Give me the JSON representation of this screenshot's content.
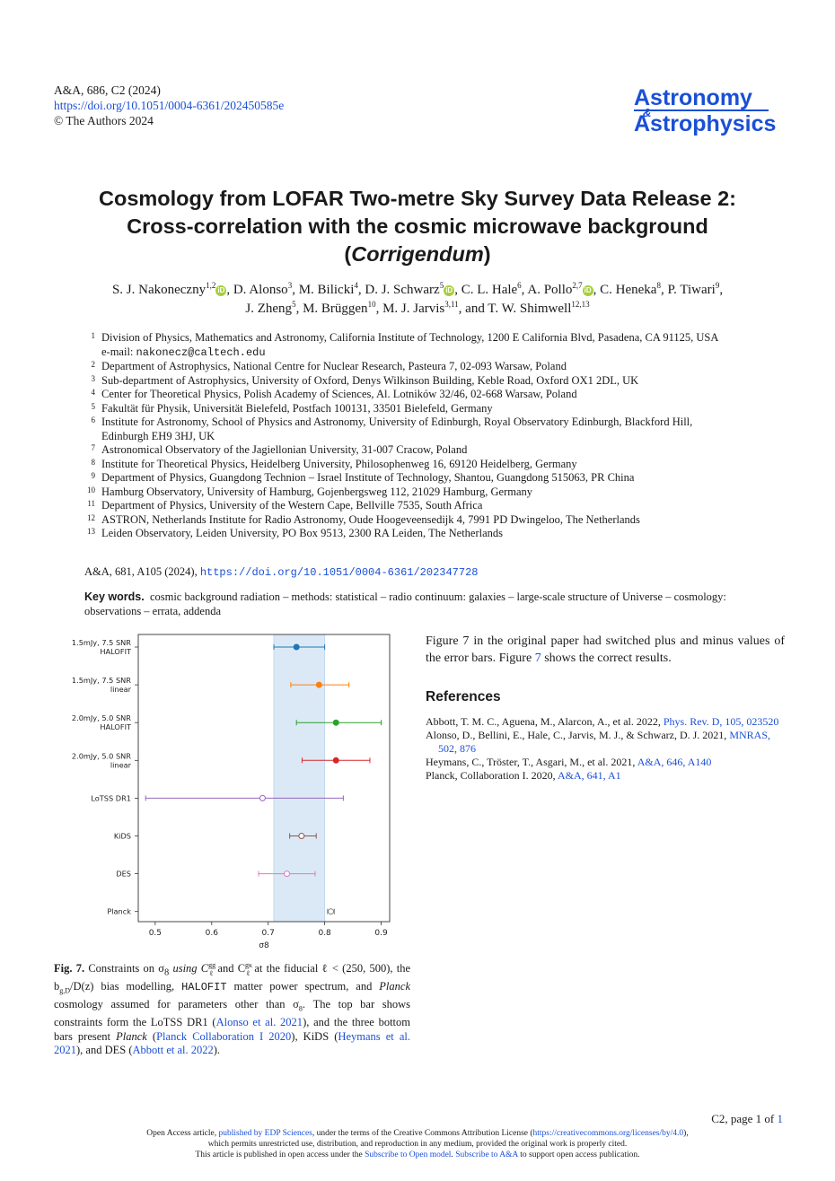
{
  "header": {
    "citation": "A&A, 686, C2 (2024)",
    "doi_link": "https://doi.org/10.1051/0004-6361/202450585e",
    "copyright": "© The Authors 2024",
    "journal_line1": "Astronomy",
    "journal_amp": "&",
    "journal_line2": "Astrophysics"
  },
  "title": {
    "line1": "Cosmology from LOFAR Two-metre Sky Survey Data Release 2:",
    "line2": "Cross-correlation with the cosmic microwave background",
    "line3_open": "(",
    "line3_italic": "Corrigendum",
    "line3_close": ")"
  },
  "authors": [
    {
      "name": "S. J. Nakoneczny",
      "aff": "1,2",
      "orcid": true
    },
    {
      "name": "D. Alonso",
      "aff": "3",
      "orcid": false
    },
    {
      "name": "M. Bilicki",
      "aff": "4",
      "orcid": false
    },
    {
      "name": "D. J. Schwarz",
      "aff": "5",
      "orcid": true
    },
    {
      "name": "C. L. Hale",
      "aff": "6",
      "orcid": false
    },
    {
      "name": "A. Pollo",
      "aff": "2,7",
      "orcid": true
    },
    {
      "name": "C. Heneka",
      "aff": "8",
      "orcid": false
    },
    {
      "name": "P. Tiwari",
      "aff": "9",
      "orcid": false
    },
    {
      "name": "J. Zheng",
      "aff": "5",
      "orcid": false
    },
    {
      "name": "M. Brüggen",
      "aff": "10",
      "orcid": false
    },
    {
      "name": "M. J. Jarvis",
      "aff": "3,11",
      "orcid": false
    },
    {
      "name": "T. W. Shimwell",
      "aff": "12,13",
      "orcid": false
    }
  ],
  "author_connector": "and",
  "orcid_glyph": "iD",
  "affiliations": [
    {
      "num": "1",
      "text": "Division of Physics, Mathematics and Astronomy, California Institute of Technology, 1200 E California Blvd, Pasadena, CA 91125, USA",
      "email_label": "e-mail: ",
      "email": "nakonecz@caltech.edu"
    },
    {
      "num": "2",
      "text": "Department of Astrophysics, National Centre for Nuclear Research, Pasteura 7, 02-093 Warsaw, Poland"
    },
    {
      "num": "3",
      "text": "Sub-department of Astrophysics, University of Oxford, Denys Wilkinson Building, Keble Road, Oxford OX1 2DL, UK"
    },
    {
      "num": "4",
      "text": "Center for Theoretical Physics, Polish Academy of Sciences, Al. Lotników 32/46, 02-668 Warsaw, Poland"
    },
    {
      "num": "5",
      "text": "Fakultät für Physik, Universität Bielefeld, Postfach 100131, 33501 Bielefeld, Germany"
    },
    {
      "num": "6",
      "text": "Institute for Astronomy, School of Physics and Astronomy, University of Edinburgh, Royal Observatory Edinburgh, Blackford Hill, Edinburgh EH9 3HJ, UK"
    },
    {
      "num": "7",
      "text": "Astronomical Observatory of the Jagiellonian University, 31-007 Cracow, Poland"
    },
    {
      "num": "8",
      "text": "Institute for Theoretical Physics, Heidelberg University, Philosophenweg 16, 69120 Heidelberg, Germany"
    },
    {
      "num": "9",
      "text": "Department of Physics, Guangdong Technion – Israel Institute of Technology, Shantou, Guangdong 515063, PR China"
    },
    {
      "num": "10",
      "text": "Hamburg Observatory, University of Hamburg, Gojenbergsweg 112, 21029 Hamburg, Germany"
    },
    {
      "num": "11",
      "text": "Department of Physics, University of the Western Cape, Bellville 7535, South Africa"
    },
    {
      "num": "12",
      "text": "ASTRON, Netherlands Institute for Radio Astronomy, Oude Hoogeveensedijk 4, 7991 PD Dwingeloo, The Netherlands"
    },
    {
      "num": "13",
      "text": "Leiden Observatory, Leiden University, PO Box 9513, 2300 RA Leiden, The Netherlands"
    }
  ],
  "original_ref": {
    "text": "A&A, 681, A105 (2024), ",
    "link": "https://doi.org/10.1051/0004-6361/202347728"
  },
  "keywords": {
    "label": "Key words.",
    "text": "cosmic background radiation – methods: statistical – radio continuum: galaxies – large-scale structure of Universe – cosmology: observations – errata, addenda"
  },
  "body_text": {
    "part1": "Figure 7 in the original paper had switched plus and minus values of the error bars. Figure ",
    "fig_link": "7",
    "part2": " shows the correct results."
  },
  "references": {
    "heading": "References",
    "items": [
      {
        "text": "Abbott, T. M. C., Aguena, M., Alarcon, A., et al. 2022, ",
        "link": "Phys. Rev. D, 105, 023520"
      },
      {
        "text": "Alonso, D., Bellini, E., Hale, C., Jarvis, M. J., & Schwarz, D. J. 2021, ",
        "link": "MNRAS, 502, 876"
      },
      {
        "text": "Heymans, C., Tröster, T., Asgari, M., et al. 2021, ",
        "link": "A&A, 646, A140"
      },
      {
        "text": "Planck, Collaboration I. 2020, ",
        "link": "A&A, 641, A1"
      }
    ]
  },
  "caption": {
    "label": "Fig. 7.",
    "html_parts": {
      "p1": " Constraints on σ",
      "p1_sub": "8",
      "p2": " using C",
      "p2_sup": "gg",
      "p2_sub": "ℓ",
      "p3": " and C",
      "p3_sup": "gκ",
      "p3_sub": "ℓ",
      "p4": " at the fiducial ℓ < (250, 500), the b",
      "p4_sub": "g,D",
      "p5": "/D(z) bias modelling, ",
      "p5_mono": "HALOFIT",
      "p6": " matter power spectrum, and ",
      "p6_it": "Planck",
      "p7": " cosmology assumed for parameters other than σ",
      "p7_sub": "8",
      "p8": ". The top bar shows constraints form the LoTSS DR1 (",
      "link1": "Alonso et al. 2021",
      "p9": "), and the three bottom bars present ",
      "p9_it": "Planck",
      "p10": " (",
      "link2": "Planck Collaboration I 2020",
      "p11": "), KiDS (",
      "link3": "Heymans et al. 2021",
      "p12": "), and DES (",
      "link4": "Abbott et al. 2022",
      "p13": ")."
    }
  },
  "footer": {
    "page": "C2, page 1 of ",
    "page_link": "1",
    "line1_a": "Open Access article, ",
    "line1_link1": "published by EDP Sciences",
    "line1_b": ", under the terms of the Creative Commons Attribution License (",
    "line1_link2": "https://creativecommons.org/licenses/by/4.0",
    "line1_c": "),",
    "line2": "which permits unrestricted use, distribution, and reproduction in any medium, provided the original work is properly cited.",
    "line3_a": "This article is published in open access under the ",
    "line3_link1": "Subscribe to Open model",
    "line3_b": ". ",
    "line3_link2": "Subscribe to A&A",
    "line3_c": " to support open access publication."
  },
  "chart_data": {
    "type": "scatter",
    "xlabel": "σ8",
    "xlim": [
      0.47,
      0.915
    ],
    "xticks": [
      "0.5",
      "0.6",
      "0.7",
      "0.8",
      "0.9"
    ],
    "xtick_values": [
      0.5,
      0.6,
      0.7,
      0.8,
      0.9
    ],
    "band": {
      "from": 0.71,
      "to": 0.8,
      "color": "#dbe9f6"
    },
    "series": [
      {
        "label1": "1.5mJy, 7.5 SNR",
        "label2": "HALOFIT",
        "value": 0.75,
        "lo": 0.71,
        "hi": 0.8,
        "color": "#1f77b4",
        "filled": true
      },
      {
        "label1": "1.5mJy, 7.5 SNR",
        "label2": "linear",
        "value": 0.79,
        "lo": 0.74,
        "hi": 0.843,
        "color": "#ff7f0e",
        "filled": true
      },
      {
        "label1": "2.0mJy, 5.0 SNR",
        "label2": "HALOFIT",
        "value": 0.82,
        "lo": 0.75,
        "hi": 0.9,
        "color": "#2ca02c",
        "filled": true
      },
      {
        "label1": "2.0mJy, 5.0 SNR",
        "label2": "linear",
        "value": 0.82,
        "lo": 0.76,
        "hi": 0.88,
        "color": "#d62728",
        "filled": true
      },
      {
        "label1": "LoTSS DR1",
        "label2": "",
        "value": 0.69,
        "lo": 0.483,
        "hi": 0.833,
        "color": "#9467bd",
        "filled": false
      },
      {
        "label1": "KiDS",
        "label2": "",
        "value": 0.759,
        "lo": 0.738,
        "hi": 0.785,
        "color": "#8c564b",
        "filled": false
      },
      {
        "label1": "DES",
        "label2": "",
        "value": 0.733,
        "lo": 0.683,
        "hi": 0.783,
        "color": "#e377c2",
        "filled": false
      },
      {
        "label1": "Planck",
        "label2": "",
        "value": 0.811,
        "lo": 0.805,
        "hi": 0.817,
        "color": "#7f7f7f",
        "filled": false
      }
    ]
  }
}
